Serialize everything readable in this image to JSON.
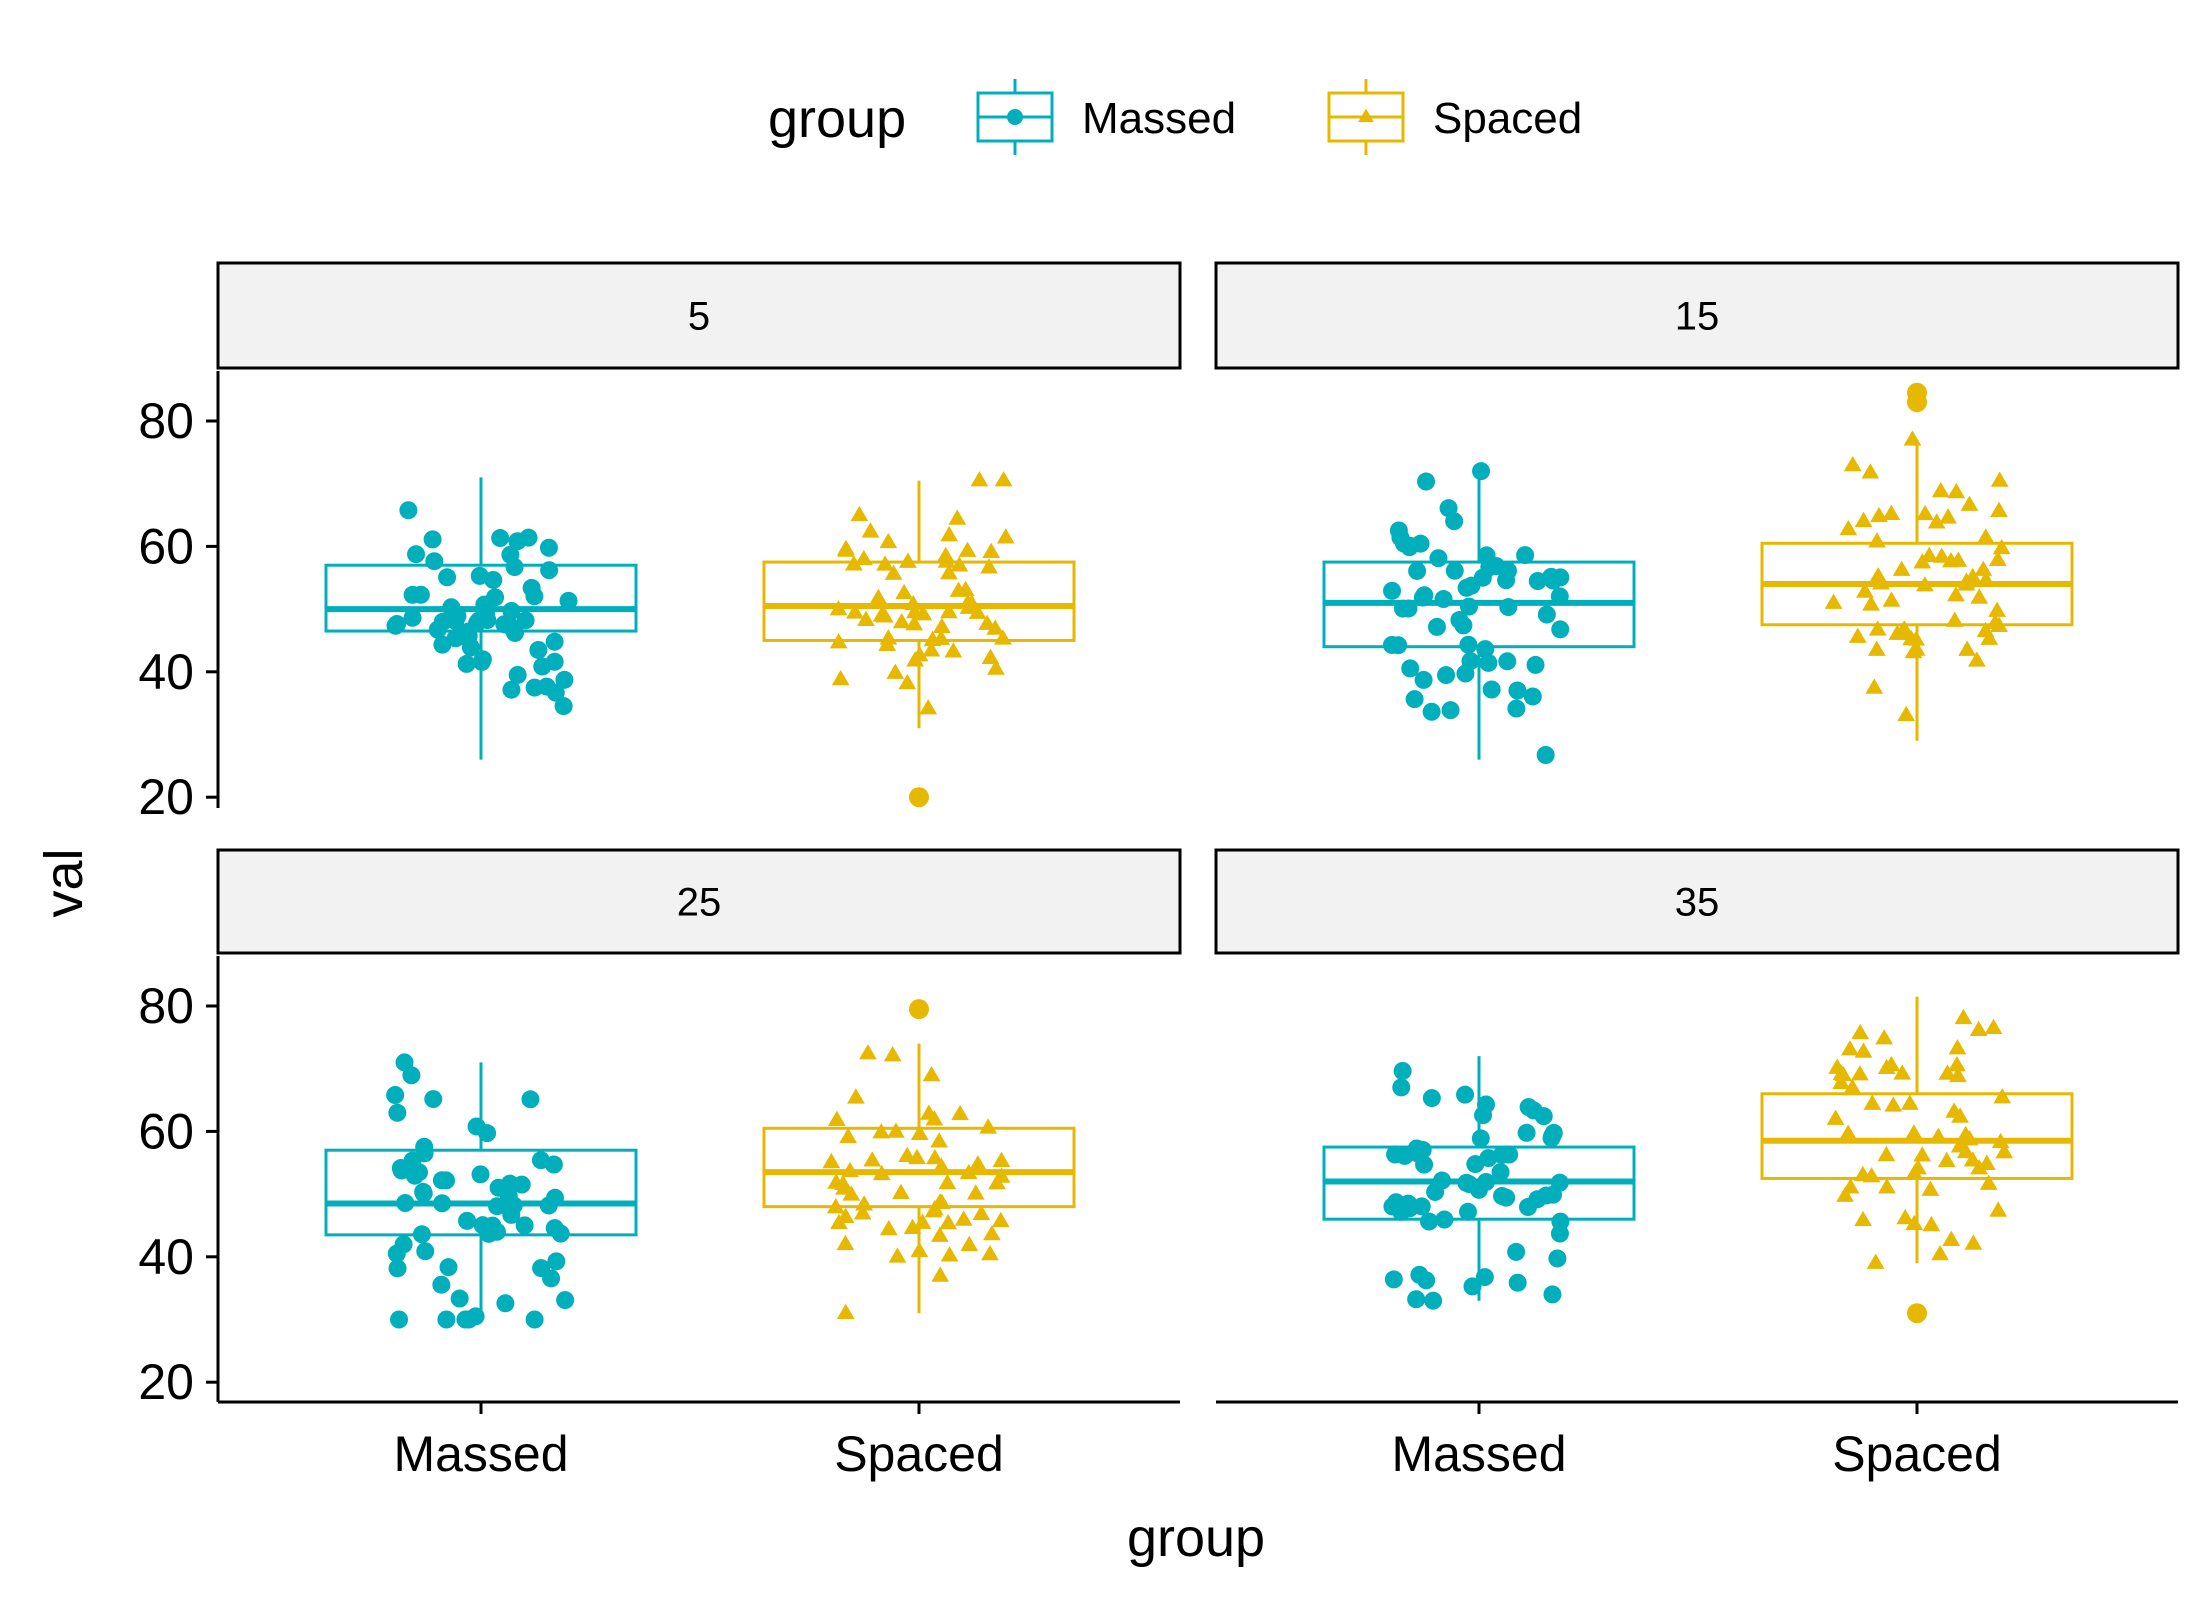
{
  "chart_data": {
    "type": "box",
    "legend": {
      "title": "group",
      "position": "top",
      "items": [
        {
          "label": "Massed",
          "color": "#00AFBB",
          "shape": "circle"
        },
        {
          "label": "Spaced",
          "color": "#E7B800",
          "shape": "triangle"
        }
      ]
    },
    "xlabel": "group",
    "ylabel": "val",
    "categories": [
      "Massed",
      "Spaced"
    ],
    "y_ticks": [
      20,
      40,
      60,
      80
    ],
    "ylim": [
      19,
      88
    ],
    "facets": [
      {
        "label": "5",
        "boxes": [
          {
            "group": "Massed",
            "q1": 46.5,
            "median": 50,
            "q3": 57,
            "whisker_low": 26,
            "whisker_high": 71
          },
          {
            "group": "Spaced",
            "q1": 45,
            "median": 50.5,
            "q3": 57.5,
            "whisker_low": 31,
            "whisker_high": 70.5
          }
        ],
        "outliers": [
          {
            "group": "Spaced",
            "y": 20
          }
        ]
      },
      {
        "label": "15",
        "boxes": [
          {
            "group": "Massed",
            "q1": 44,
            "median": 51,
            "q3": 57.5,
            "whisker_low": 26,
            "whisker_high": 72
          },
          {
            "group": "Spaced",
            "q1": 47.5,
            "median": 54,
            "q3": 60.5,
            "whisker_low": 29,
            "whisker_high": 77
          }
        ],
        "outliers": [
          {
            "group": "Spaced",
            "y": 84.5
          },
          {
            "group": "Spaced",
            "y": 83
          }
        ]
      },
      {
        "label": "25",
        "boxes": [
          {
            "group": "Massed",
            "q1": 43.5,
            "median": 48.5,
            "q3": 57,
            "whisker_low": 30,
            "whisker_high": 71
          },
          {
            "group": "Spaced",
            "q1": 48,
            "median": 53.5,
            "q3": 60.5,
            "whisker_low": 31,
            "whisker_high": 74
          }
        ],
        "outliers": [
          {
            "group": "Spaced",
            "y": 79.5
          }
        ]
      },
      {
        "label": "35",
        "boxes": [
          {
            "group": "Massed",
            "q1": 46,
            "median": 52,
            "q3": 57.5,
            "whisker_low": 33,
            "whisker_high": 72
          },
          {
            "group": "Spaced",
            "q1": 52.5,
            "median": 58.5,
            "q3": 66,
            "whisker_low": 39,
            "whisker_high": 81.5
          }
        ],
        "outliers": [
          {
            "group": "Spaced",
            "y": 31
          }
        ]
      }
    ],
    "points_per_box": 60,
    "jitter": true
  }
}
